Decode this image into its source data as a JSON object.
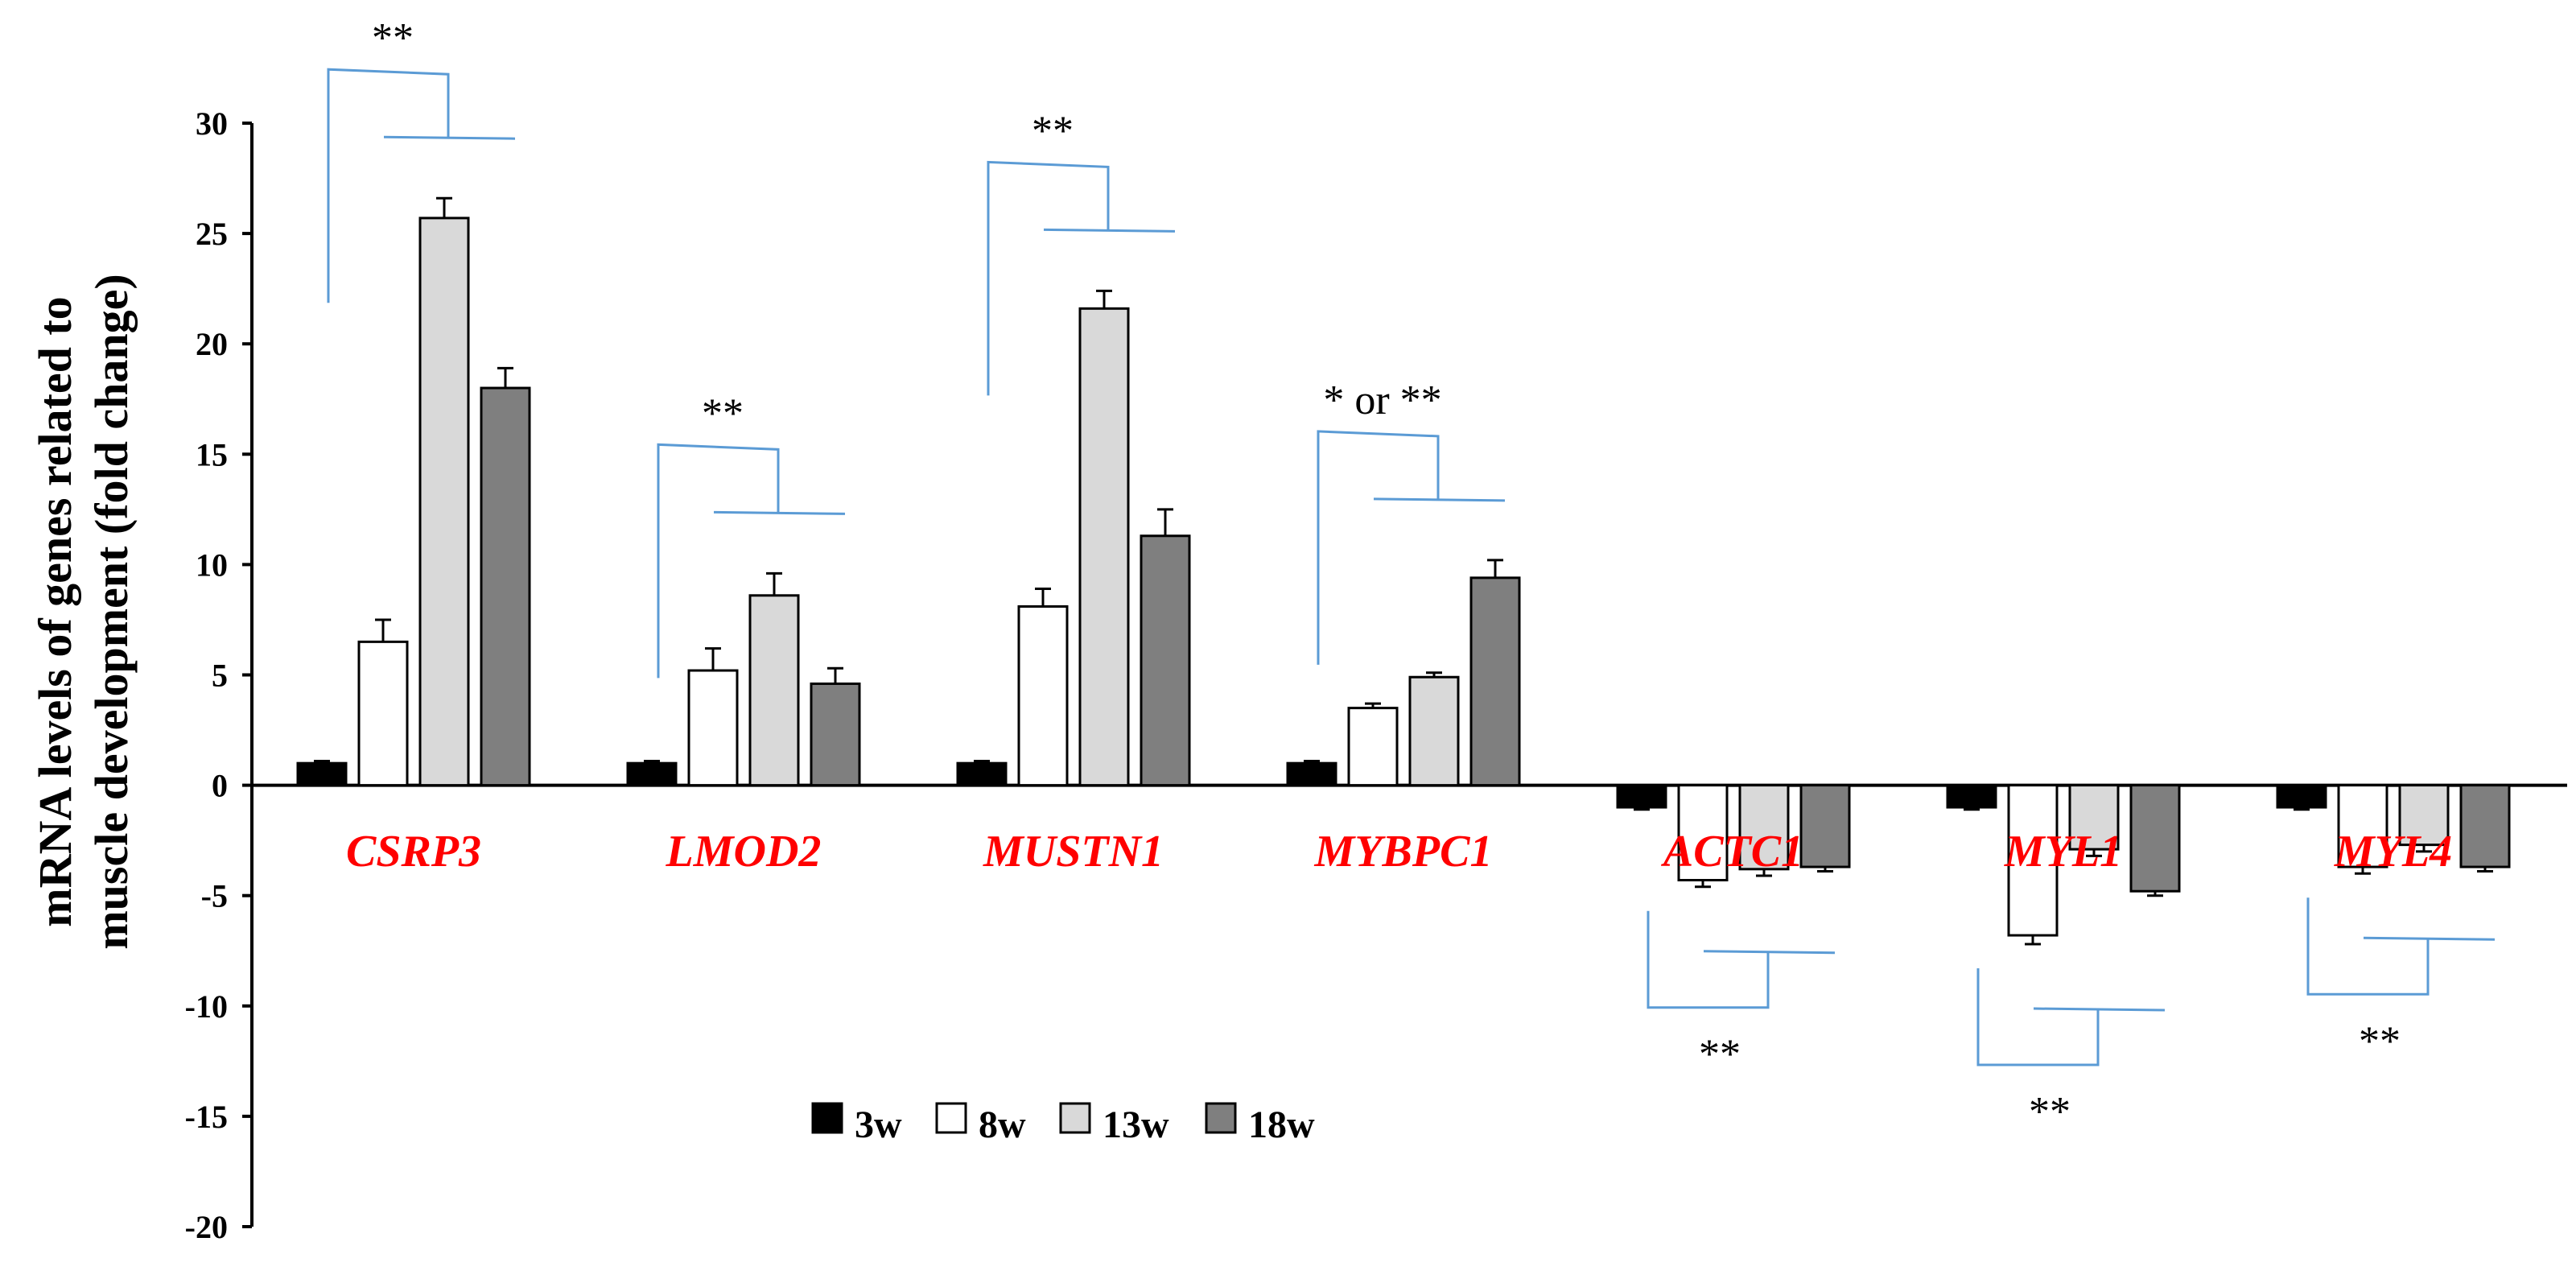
{
  "chart_data": {
    "type": "bar",
    "title": "",
    "xlabel": "",
    "ylabel_lines": [
      "mRNA levels of genes related to",
      "muscle development (fold change)"
    ],
    "ylim": [
      -20,
      30
    ],
    "yticks": [
      30,
      25,
      20,
      15,
      10,
      5,
      0,
      -5,
      -10,
      -15,
      -20
    ],
    "grid": false,
    "legend_position": "bottom-center",
    "categories": [
      "CSRP3",
      "LMOD2",
      "MUSTN1",
      "MYBPC1",
      "ACTC1",
      "MYL1",
      "MYL4"
    ],
    "series": [
      {
        "name": "3w",
        "color": "#000000",
        "values": [
          1,
          1,
          1,
          1,
          -1,
          -1,
          -1
        ],
        "errors": [
          0.1,
          0.1,
          0.1,
          0.1,
          0.1,
          0.1,
          0.1
        ]
      },
      {
        "name": "8w",
        "color": "#ffffff",
        "values": [
          6.5,
          5.2,
          8.1,
          3.5,
          -4.3,
          -6.8,
          -3.7
        ],
        "errors": [
          1.0,
          1.0,
          0.8,
          0.2,
          0.3,
          0.4,
          0.3
        ]
      },
      {
        "name": "13w",
        "color": "#d9d9d9",
        "values": [
          25.7,
          8.6,
          21.6,
          4.9,
          -3.8,
          -2.9,
          -2.7
        ],
        "errors": [
          0.9,
          1.0,
          0.8,
          0.2,
          0.3,
          0.3,
          0.3
        ]
      },
      {
        "name": "18w",
        "color": "#7f7f7f",
        "values": [
          18,
          4.6,
          11.3,
          9.4,
          -3.7,
          -4.8,
          -3.7
        ],
        "errors": [
          0.9,
          0.7,
          1.2,
          0.8,
          0.2,
          0.2,
          0.2
        ]
      }
    ],
    "annotations": [
      {
        "category": "CSRP3",
        "text": "**",
        "side": "top"
      },
      {
        "category": "LMOD2",
        "text": "**",
        "side": "top"
      },
      {
        "category": "MUSTN1",
        "text": "**",
        "side": "top"
      },
      {
        "category": "MYBPC1",
        "text": "* or **",
        "side": "top"
      },
      {
        "category": "ACTC1",
        "text": "**",
        "side": "bottom"
      },
      {
        "category": "MYL1",
        "text": "**",
        "side": "bottom"
      },
      {
        "category": "MYL4",
        "text": "**",
        "side": "bottom"
      }
    ],
    "label_color": "#ff0000",
    "bracket_color": "#5b9bd5"
  }
}
